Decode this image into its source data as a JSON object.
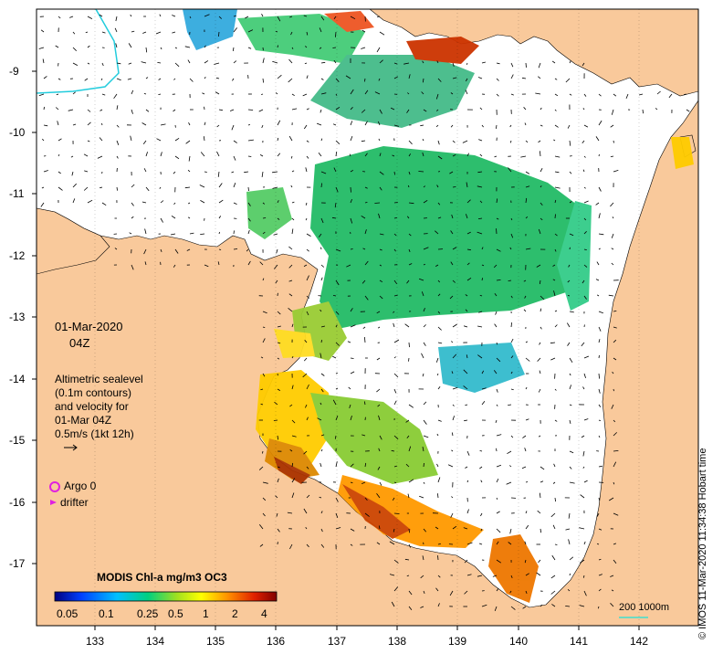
{
  "map": {
    "date": "01-Mar-2020",
    "hour": "04Z",
    "legend_text": [
      "Altimetric sealevel",
      "(0.1m contours)",
      "and velocity for",
      "01-Mar 04Z",
      "0.5m/s (1kt 12h)"
    ],
    "argo_label": "Argo 0",
    "drifter_label": "drifter",
    "colorbar_title": "MODIS Chl-a mg/m3 OC3",
    "colorbar_ticks": [
      "0.05",
      "0.1",
      "0.25",
      "0.5",
      "1",
      "2",
      "4"
    ],
    "scale_label": "200  1000m",
    "credit": "© IMOS 11-Mar-2020 11:34:38 Hobart time",
    "x_ticks": [
      "133",
      "134",
      "135",
      "136",
      "137",
      "138",
      "139",
      "140",
      "141",
      "142"
    ],
    "y_ticks": [
      "-9",
      "-10",
      "-11",
      "-12",
      "-13",
      "-14",
      "-15",
      "-16",
      "-17"
    ],
    "colors": {
      "land": "#f9c99b",
      "ocean": "#ffffff",
      "argo": "#e020e0",
      "drifter": "#e020e0",
      "scale_line": "#40e0d0"
    }
  }
}
